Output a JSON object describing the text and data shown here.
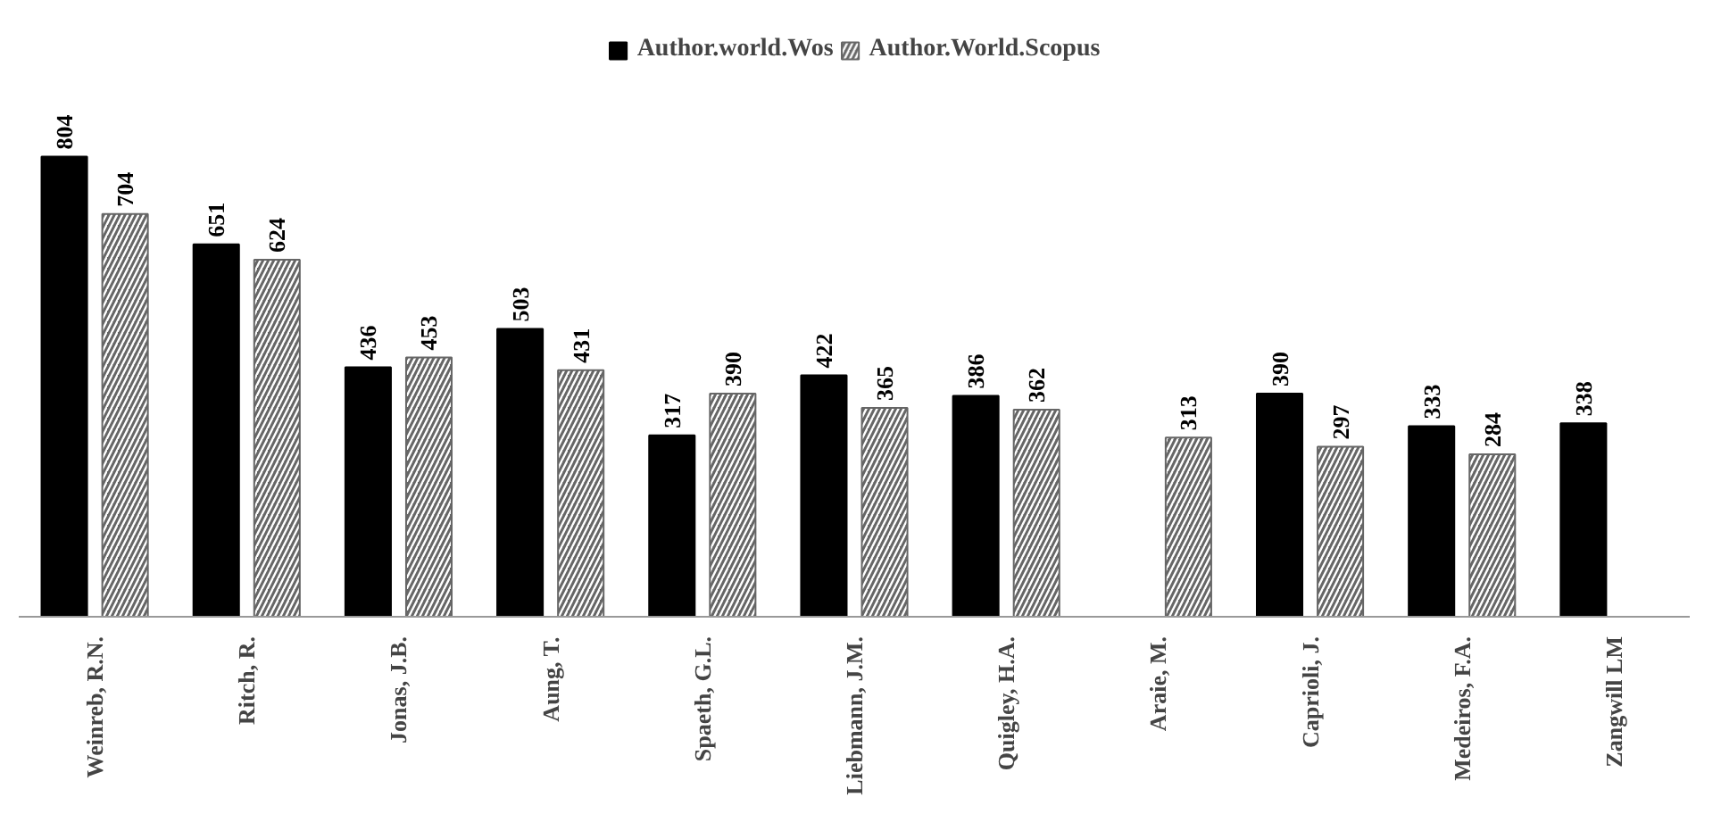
{
  "chart_data": {
    "type": "bar",
    "categories": [
      "Weinreb, R.N.",
      "Ritch, R.",
      "Jonas, J.B.",
      "Aung, T.",
      "Spaeth, G.L.",
      "Liebmann, J.M.",
      "Quigley, H.A.",
      "Araie, M.",
      "Caprioli, J.",
      "Medeiros, F.A.",
      "Zangwill LM"
    ],
    "series": [
      {
        "name": "Author.world.Wos",
        "color": "#000000",
        "values": [
          804,
          651,
          436,
          503,
          317,
          422,
          386,
          null,
          390,
          333,
          338
        ]
      },
      {
        "name": "Author.World.Scopus",
        "color": "#666666",
        "values": [
          704,
          624,
          453,
          431,
          390,
          365,
          362,
          313,
          297,
          284,
          null
        ]
      }
    ],
    "data_labels": true,
    "legend": "top",
    "grid": false
  }
}
